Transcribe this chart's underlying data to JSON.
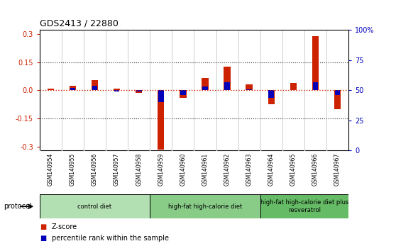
{
  "title": "GDS2413 / 22880",
  "samples": [
    "GSM140954",
    "GSM140955",
    "GSM140956",
    "GSM140957",
    "GSM140958",
    "GSM140959",
    "GSM140960",
    "GSM140961",
    "GSM140962",
    "GSM140963",
    "GSM140964",
    "GSM140965",
    "GSM140966",
    "GSM140967"
  ],
  "zscore": [
    0.01,
    0.025,
    0.055,
    0.008,
    -0.012,
    -0.315,
    -0.038,
    0.065,
    0.125,
    0.03,
    -0.075,
    0.04,
    0.287,
    -0.1
  ],
  "pct_rank_raw": [
    50,
    52,
    54,
    49,
    49,
    40,
    46,
    53,
    57,
    51,
    44,
    50,
    57,
    46
  ],
  "zscore_color": "#cc2200",
  "pct_color": "#0000bb",
  "ylim_left": [
    -0.32,
    0.32
  ],
  "yticks_left": [
    -0.3,
    -0.15,
    0.0,
    0.15,
    0.3
  ],
  "yticks_right": [
    0,
    25,
    50,
    75,
    100
  ],
  "hline_color": "#cc2200",
  "dotline_color": "#333333",
  "groups": [
    {
      "label": "control diet",
      "start": 0,
      "end": 4,
      "color": "#b3e0b3"
    },
    {
      "label": "high-fat high-calorie diet",
      "start": 5,
      "end": 9,
      "color": "#88cc88"
    },
    {
      "label": "high-fat high-calorie diet plus\nresveratrol",
      "start": 10,
      "end": 13,
      "color": "#66bb66"
    }
  ],
  "tick_bg_color": "#cccccc",
  "plot_bg": "#ffffff",
  "legend_zscore": "Z-score",
  "legend_pct": "percentile rank within the sample",
  "protocol_label": "protocol"
}
